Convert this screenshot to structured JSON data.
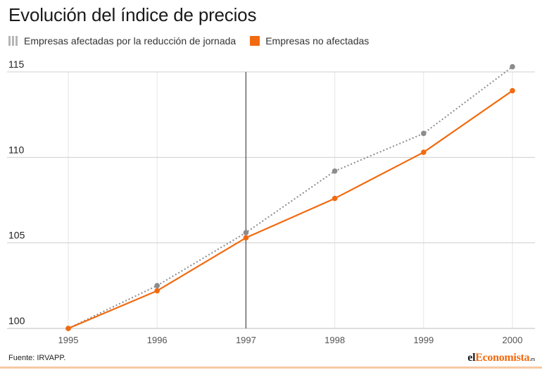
{
  "chart_data": {
    "type": "line",
    "title": "Evolución del índice de precios",
    "xlabel": "",
    "ylabel": "",
    "x": [
      1995,
      1996,
      1997,
      1998,
      1999,
      2000
    ],
    "x_labels": [
      "1995",
      "1996",
      "1997",
      "1998",
      "1999",
      "2000"
    ],
    "ylim": [
      100,
      115
    ],
    "y_ticks": [
      100,
      105,
      110,
      115
    ],
    "y_tick_labels": [
      "100",
      "105",
      "110",
      "115"
    ],
    "grid": true,
    "reference_line_x": 1997,
    "series": [
      {
        "name": "Empresas afectadas por la reducción de jornada",
        "values": [
          100,
          102.5,
          105.6,
          109.2,
          111.4,
          115.3
        ],
        "color": "#8c8c8c",
        "style": "dotted"
      },
      {
        "name": "Empresas no afectadas",
        "values": [
          100,
          102.2,
          105.3,
          107.6,
          110.3,
          113.9
        ],
        "color": "#f26a0f",
        "style": "solid"
      }
    ],
    "legend_position": "top-left"
  },
  "legend": {
    "affected_label": "Empresas afectadas por la reducción de jornada",
    "unaffected_label": "Empresas no afectadas"
  },
  "footer": {
    "source": "Fuente: IRVAPP.",
    "brand_prefix": "el",
    "brand_accent": "Economista",
    "brand_suffix": ".es"
  },
  "colors": {
    "accent": "#f26a0f",
    "gray_series": "#8c8c8c",
    "grid": "#e6e6e6",
    "axis": "#bdbdbd",
    "reference": "#555555"
  }
}
